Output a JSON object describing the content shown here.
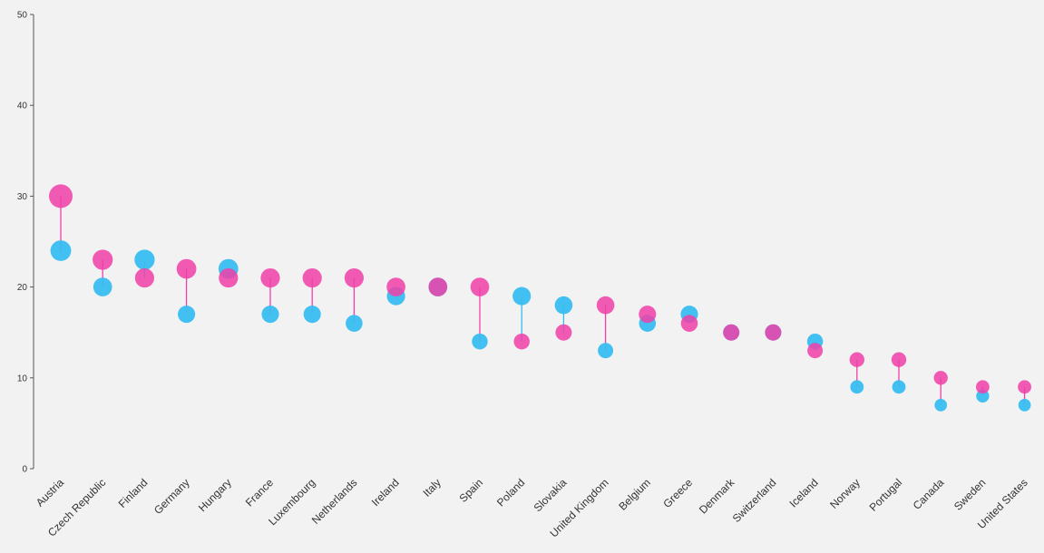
{
  "chart_data": {
    "type": "scatter",
    "subtype": "dumbbell",
    "title": "",
    "xlabel": "",
    "ylabel": "",
    "ylim": [
      0,
      50
    ],
    "yticks": [
      0,
      10,
      20,
      30,
      40,
      50
    ],
    "grid": false,
    "categories": [
      "Austria",
      "Czech Republic",
      "Finland",
      "Germany",
      "Hungary",
      "France",
      "Luxembourg",
      "Netherlands",
      "Ireland",
      "Italy",
      "Spain",
      "Poland",
      "Slovakia",
      "United Kingdom",
      "Belgium",
      "Greece",
      "Denmark",
      "Switzerland",
      "Iceland",
      "Norway",
      "Portugal",
      "Canada",
      "Sweden",
      "United States"
    ],
    "series": [
      {
        "color": "#f040a8",
        "values": [
          30,
          23,
          21,
          22,
          21,
          21,
          21,
          21,
          20,
          20,
          20,
          14,
          15,
          18,
          17,
          16,
          15,
          15,
          13,
          12,
          12,
          10,
          9,
          9
        ]
      },
      {
        "color": "#38bdf0",
        "values": [
          24,
          20,
          23,
          17,
          22,
          17,
          17,
          16,
          19,
          20,
          14,
          19,
          18,
          13,
          16,
          17,
          15,
          15,
          14,
          9,
          9,
          7,
          8,
          7
        ]
      }
    ]
  }
}
